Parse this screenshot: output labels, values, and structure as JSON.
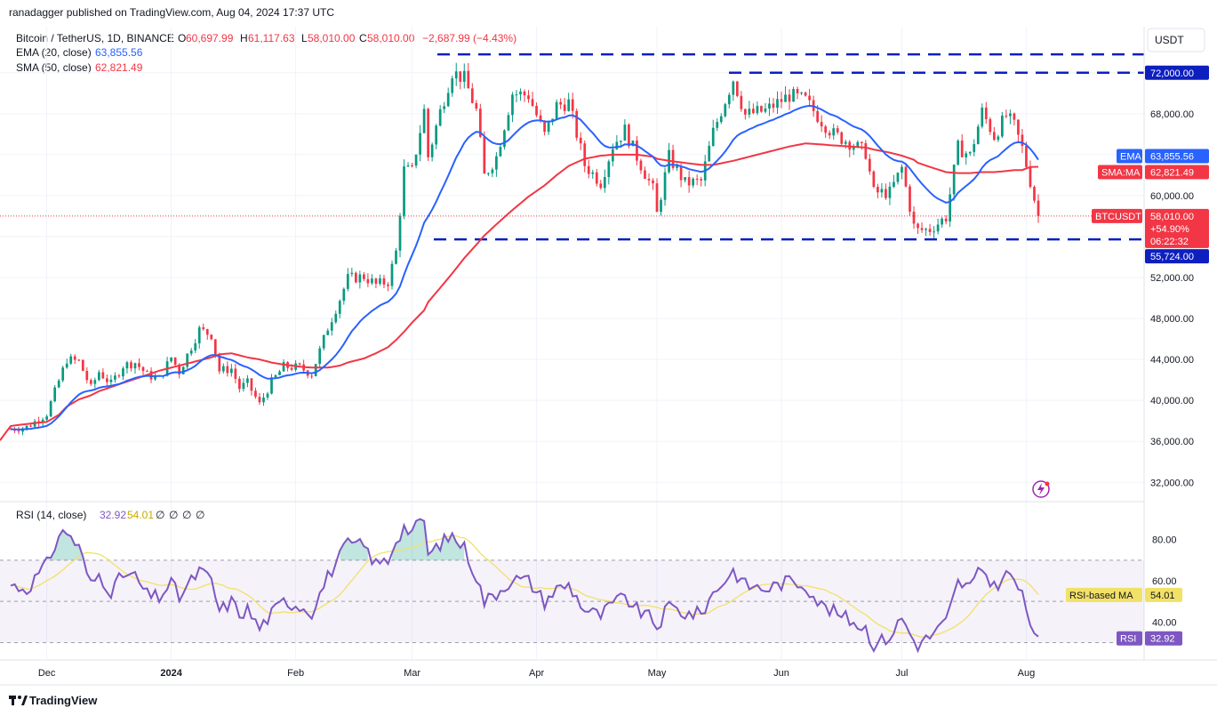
{
  "header": {
    "publisher": "ranadagger published on TradingView.com, Aug 04, 2024 17:37 UTC"
  },
  "legend": {
    "symbol": "Bitcoin / TetherUS, 1D, BINANCE",
    "ohlc": [
      {
        "key": "O",
        "value": "60,697.99"
      },
      {
        "key": "H",
        "value": "61,117.63"
      },
      {
        "key": "L",
        "value": "58,010.00"
      },
      {
        "key": "C",
        "value": "58,010.00"
      }
    ],
    "change": "−2,687.99 (−4.43%)",
    "ema_label": "EMA (20, close)",
    "ema_value": "63,855.56",
    "sma_label": "SMA (50, close)",
    "sma_value": "62,821.49",
    "rsi_label": "RSI (14, close)",
    "rsi_value": "32.92",
    "rsi_ma_value": "54.01",
    "rsi_extra": [
      "∅",
      "∅",
      "∅",
      "∅"
    ]
  },
  "currency_button": "USDT",
  "footer": {
    "brand": "TradingView"
  },
  "colors": {
    "up": "#089981",
    "down": "#f23645",
    "ema": "#2962ff",
    "sma": "#f23645",
    "rsi": "#7e57c2",
    "rsi_ma": "#f2e167",
    "level": "#0d1fbf",
    "rsi_band": "#7e57c2"
  },
  "chart_data": [
    {
      "type": "candlestick",
      "title": "Bitcoin / TetherUS, 1D, BINANCE",
      "x_tick_labels": [
        "Dec",
        "2024",
        "Feb",
        "Mar",
        "Apr",
        "May",
        "Jun",
        "Jul",
        "Aug"
      ],
      "y_ticks": [
        32000,
        36000,
        40000,
        44000,
        48000,
        52000,
        56000,
        60000,
        64000,
        68000,
        72000
      ],
      "y_tick_labels": [
        "32,000.00",
        "36,000.00",
        "40,000.00",
        "44,000.00",
        "48,000.00",
        "52,000.00",
        "56,000.00",
        "60,000.00",
        "64,000.00",
        "68,000.00",
        "72,000.00"
      ],
      "ylim": [
        30200,
        76500
      ],
      "levels": [
        {
          "label": "72,000.00",
          "value": 72000
        },
        {
          "label": "55,724.00",
          "value": 55724
        }
      ],
      "extra_level": 73800,
      "tags": {
        "ema": {
          "name": "EMA",
          "value": "63,855.56"
        },
        "sma": {
          "name": "SMA:MA",
          "value": "62,821.49"
        },
        "last": {
          "name": "BTCUSDT",
          "price": "58,010.00",
          "change": "+54.90%",
          "countdown": "06:22:32"
        }
      },
      "anchors": [
        [
          "2023-11-22",
          37200,
          37500
        ],
        [
          "2023-11-26",
          37400,
          37700
        ],
        [
          "2023-12-01",
          38700,
          37900
        ],
        [
          "2023-12-04",
          41900,
          38600
        ],
        [
          "2023-12-06",
          44000,
          39400
        ],
        [
          "2023-12-09",
          43800,
          40100
        ],
        [
          "2023-12-12",
          41200,
          40500
        ],
        [
          "2023-12-14",
          42800,
          40900
        ],
        [
          "2023-12-17",
          41600,
          41300
        ],
        [
          "2023-12-20",
          43400,
          41700
        ],
        [
          "2023-12-23",
          43700,
          42100
        ],
        [
          "2023-12-26",
          42500,
          42500
        ],
        [
          "2023-12-29",
          42100,
          42900
        ],
        [
          "2024-01-01",
          44200,
          43200
        ],
        [
          "2024-01-03",
          42800,
          43400
        ],
        [
          "2024-01-08",
          46900,
          43900
        ],
        [
          "2024-01-11",
          46400,
          44200
        ],
        [
          "2024-01-13",
          42900,
          44500
        ],
        [
          "2024-01-16",
          43100,
          44600
        ],
        [
          "2024-01-18",
          41200,
          44400
        ],
        [
          "2024-01-20",
          41700,
          44200
        ],
        [
          "2024-01-23",
          39600,
          44000
        ],
        [
          "2024-01-26",
          41800,
          43700
        ],
        [
          "2024-01-29",
          43300,
          43500
        ],
        [
          "2024-02-02",
          43200,
          43300
        ],
        [
          "2024-02-05",
          42600,
          43200
        ],
        [
          "2024-02-09",
          47100,
          43200
        ],
        [
          "2024-02-12",
          49900,
          43400
        ],
        [
          "2024-02-14",
          51900,
          43700
        ],
        [
          "2024-02-18",
          52100,
          44100
        ],
        [
          "2024-02-21",
          51300,
          44600
        ],
        [
          "2024-02-24",
          51600,
          45200
        ],
        [
          "2024-02-26",
          54500,
          45900
        ],
        [
          "2024-02-28",
          62500,
          46700
        ],
        [
          "2024-03-01",
          62400,
          47600
        ],
        [
          "2024-03-04",
          68300,
          48800
        ],
        [
          "2024-03-05",
          63800,
          49600
        ],
        [
          "2024-03-08",
          68200,
          51000
        ],
        [
          "2024-03-11",
          72100,
          52400
        ],
        [
          "2024-03-14",
          71400,
          53900
        ],
        [
          "2024-03-17",
          68300,
          55200
        ],
        [
          "2024-03-19",
          61900,
          56100
        ],
        [
          "2024-03-22",
          63800,
          57200
        ],
        [
          "2024-03-26",
          70000,
          58600
        ],
        [
          "2024-03-30",
          69800,
          59900
        ],
        [
          "2024-04-03",
          65900,
          61000
        ],
        [
          "2024-04-06",
          68800,
          62000
        ],
        [
          "2024-04-09",
          69100,
          62900
        ],
        [
          "2024-04-13",
          63000,
          63600
        ],
        [
          "2024-04-17",
          61300,
          63900
        ],
        [
          "2024-04-20",
          64900,
          64000
        ],
        [
          "2024-04-23",
          66400,
          64000
        ],
        [
          "2024-04-26",
          63800,
          64000
        ],
        [
          "2024-04-30",
          60600,
          63800
        ],
        [
          "2024-05-01",
          58200,
          63600
        ],
        [
          "2024-05-04",
          63800,
          63400
        ],
        [
          "2024-05-08",
          61200,
          63200
        ],
        [
          "2024-05-12",
          61400,
          63000
        ],
        [
          "2024-05-15",
          66200,
          63000
        ],
        [
          "2024-05-20",
          71400,
          63400
        ],
        [
          "2024-05-23",
          67900,
          63700
        ],
        [
          "2024-05-28",
          68300,
          64200
        ],
        [
          "2024-06-03",
          69800,
          64800
        ],
        [
          "2024-06-07",
          69300,
          65100
        ],
        [
          "2024-06-11",
          67300,
          65000
        ],
        [
          "2024-06-14",
          66000,
          64900
        ],
        [
          "2024-06-18",
          65200,
          64800
        ],
        [
          "2024-06-22",
          64200,
          64700
        ],
        [
          "2024-06-24",
          60300,
          64500
        ],
        [
          "2024-06-28",
          60300,
          64200
        ],
        [
          "2024-07-01",
          62700,
          63900
        ],
        [
          "2024-07-04",
          57000,
          63500
        ],
        [
          "2024-07-05",
          56600,
          63200
        ],
        [
          "2024-07-08",
          56700,
          62800
        ],
        [
          "2024-07-12",
          57900,
          62300
        ],
        [
          "2024-07-15",
          64700,
          62200
        ],
        [
          "2024-07-18",
          63900,
          62200
        ],
        [
          "2024-07-21",
          68200,
          62300
        ],
        [
          "2024-07-24",
          65800,
          62300
        ],
        [
          "2024-07-27",
          67800,
          62400
        ],
        [
          "2024-07-29",
          66800,
          62500
        ],
        [
          "2024-07-31",
          64600,
          62500
        ],
        [
          "2024-08-02",
          61400,
          62800
        ],
        [
          "2024-08-04",
          58010,
          62821
        ]
      ]
    },
    {
      "type": "line",
      "title": "RSI (14, close)",
      "y_ticks": [
        40,
        60,
        80
      ],
      "y_tick_labels": [
        "40.00",
        "60.00",
        "80.00"
      ],
      "band": [
        30,
        70
      ],
      "ylim": [
        22,
        98
      ],
      "series": [
        {
          "name": "RSI",
          "last_value": "32.92"
        },
        {
          "name": "RSI-based MA",
          "last_value": "54.01"
        }
      ],
      "rsi_anchors": [
        [
          "2023-11-22",
          58
        ],
        [
          "2023-11-26",
          56
        ],
        [
          "2023-12-01",
          68
        ],
        [
          "2023-12-04",
          82
        ],
        [
          "2023-12-06",
          84
        ],
        [
          "2023-12-09",
          76
        ],
        [
          "2023-12-12",
          58
        ],
        [
          "2023-12-14",
          63
        ],
        [
          "2023-12-17",
          55
        ],
        [
          "2023-12-20",
          63
        ],
        [
          "2023-12-23",
          62
        ],
        [
          "2023-12-26",
          53
        ],
        [
          "2023-12-29",
          52
        ],
        [
          "2024-01-01",
          59
        ],
        [
          "2024-01-03",
          52
        ],
        [
          "2024-01-08",
          65
        ],
        [
          "2024-01-11",
          60
        ],
        [
          "2024-01-13",
          45
        ],
        [
          "2024-01-16",
          50
        ],
        [
          "2024-01-18",
          44
        ],
        [
          "2024-01-20",
          46
        ],
        [
          "2024-01-23",
          37
        ],
        [
          "2024-01-26",
          44
        ],
        [
          "2024-01-29",
          50
        ],
        [
          "2024-02-02",
          48
        ],
        [
          "2024-02-05",
          45
        ],
        [
          "2024-02-09",
          62
        ],
        [
          "2024-02-12",
          72
        ],
        [
          "2024-02-14",
          78
        ],
        [
          "2024-02-18",
          77
        ],
        [
          "2024-02-21",
          68
        ],
        [
          "2024-02-24",
          70
        ],
        [
          "2024-02-26",
          80
        ],
        [
          "2024-02-28",
          86
        ],
        [
          "2024-03-01",
          84
        ],
        [
          "2024-03-04",
          90
        ],
        [
          "2024-03-05",
          72
        ],
        [
          "2024-03-08",
          78
        ],
        [
          "2024-03-11",
          82
        ],
        [
          "2024-03-14",
          76
        ],
        [
          "2024-03-17",
          62
        ],
        [
          "2024-03-19",
          50
        ],
        [
          "2024-03-22",
          54
        ],
        [
          "2024-03-26",
          61
        ],
        [
          "2024-03-30",
          60
        ],
        [
          "2024-04-03",
          50
        ],
        [
          "2024-04-06",
          56
        ],
        [
          "2024-04-09",
          58
        ],
        [
          "2024-04-13",
          46
        ],
        [
          "2024-04-17",
          43
        ],
        [
          "2024-04-20",
          49
        ],
        [
          "2024-04-23",
          52
        ],
        [
          "2024-04-26",
          46
        ],
        [
          "2024-04-30",
          41
        ],
        [
          "2024-05-01",
          37
        ],
        [
          "2024-05-04",
          48
        ],
        [
          "2024-05-08",
          44
        ],
        [
          "2024-05-12",
          44
        ],
        [
          "2024-05-15",
          54
        ],
        [
          "2024-05-20",
          65
        ],
        [
          "2024-05-23",
          58
        ],
        [
          "2024-05-28",
          56
        ],
        [
          "2024-06-03",
          60
        ],
        [
          "2024-06-07",
          58
        ],
        [
          "2024-06-11",
          48
        ],
        [
          "2024-06-14",
          45
        ],
        [
          "2024-06-18",
          41
        ],
        [
          "2024-06-22",
          37
        ],
        [
          "2024-06-24",
          29
        ],
        [
          "2024-06-28",
          33
        ],
        [
          "2024-07-01",
          42
        ],
        [
          "2024-07-04",
          31
        ],
        [
          "2024-07-05",
          29
        ],
        [
          "2024-07-08",
          33
        ],
        [
          "2024-07-12",
          40
        ],
        [
          "2024-07-15",
          59
        ],
        [
          "2024-07-18",
          57
        ],
        [
          "2024-07-21",
          66
        ],
        [
          "2024-07-24",
          57
        ],
        [
          "2024-07-27",
          63
        ],
        [
          "2024-07-29",
          61
        ],
        [
          "2024-07-31",
          52
        ],
        [
          "2024-08-02",
          40
        ],
        [
          "2024-08-04",
          32.92
        ]
      ]
    }
  ]
}
